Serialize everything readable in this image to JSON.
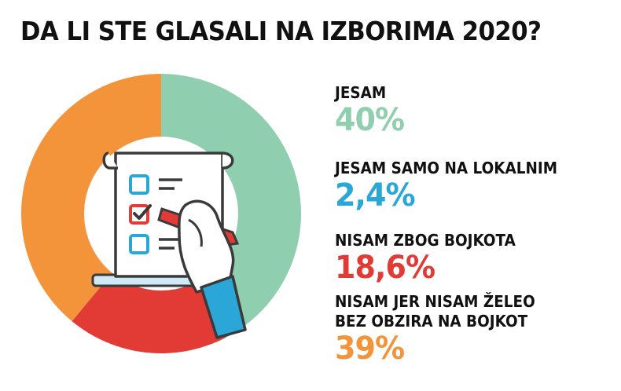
{
  "chart_data": {
    "type": "pie",
    "title": "DA LI STE GLASALI NA IZBORIMA 2020?",
    "categories": [
      "JESAM",
      "JESAM SAMO NA LOKALNIM",
      "NISAM ZBOG BOJKOTA",
      "NISAM JER NISAM ŽELEO BEZ OBZIRA NA BOJKOT"
    ],
    "values": [
      40,
      2.4,
      18.6,
      39
    ],
    "value_labels": [
      "40%",
      "2,4%",
      "18,6%",
      "39%"
    ],
    "label_lines": [
      [
        "JESAM"
      ],
      [
        "JESAM SAMO NA LOKALNIM"
      ],
      [
        "NISAM ZBOG BOJKOTA"
      ],
      [
        "NISAM JER NISAM ŽELEO",
        "BEZ OBZIRA NA BOJKOT"
      ]
    ],
    "colors": [
      "#8fcfb0",
      "#2aa7d6",
      "#e23b36",
      "#f4943a"
    ],
    "legend_position": "right",
    "donut": true
  },
  "icon": {
    "name": "checklist-ballot-icon"
  }
}
